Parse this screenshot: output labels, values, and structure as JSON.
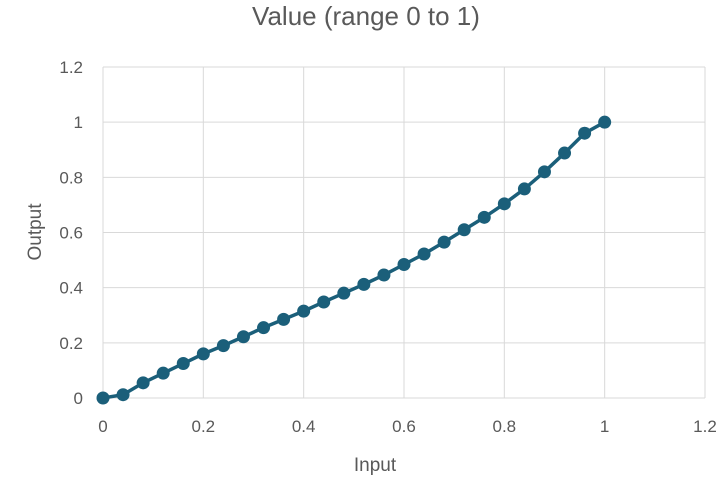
{
  "chart_data": {
    "type": "scatter",
    "title": "Value (range 0 to 1)",
    "xlabel": "Input",
    "ylabel": "Output",
    "xlim": [
      0,
      1.2
    ],
    "ylim": [
      0,
      1.2
    ],
    "x_ticks": [
      "0",
      "0.2",
      "0.4",
      "0.6",
      "0.8",
      "1",
      "1.2"
    ],
    "y_ticks": [
      "0",
      "0.2",
      "0.4",
      "0.6",
      "0.8",
      "1",
      "1.2"
    ],
    "grid": true,
    "legend": "none",
    "color": "#1b5f7a",
    "series": [
      {
        "x": [
          0,
          0.04,
          0.08,
          0.12,
          0.16,
          0.2,
          0.24,
          0.28,
          0.32,
          0.36,
          0.4,
          0.44,
          0.48,
          0.52,
          0.56,
          0.6,
          0.64,
          0.68,
          0.72,
          0.76,
          0.8,
          0.84,
          0.88,
          0.92,
          0.96,
          1
        ],
        "y": [
          0,
          0.012,
          0.055,
          0.09,
          0.125,
          0.16,
          0.19,
          0.222,
          0.255,
          0.285,
          0.315,
          0.348,
          0.38,
          0.412,
          0.446,
          0.484,
          0.522,
          0.565,
          0.61,
          0.655,
          0.704,
          0.758,
          0.82,
          0.888,
          0.96,
          1.0
        ]
      }
    ]
  }
}
